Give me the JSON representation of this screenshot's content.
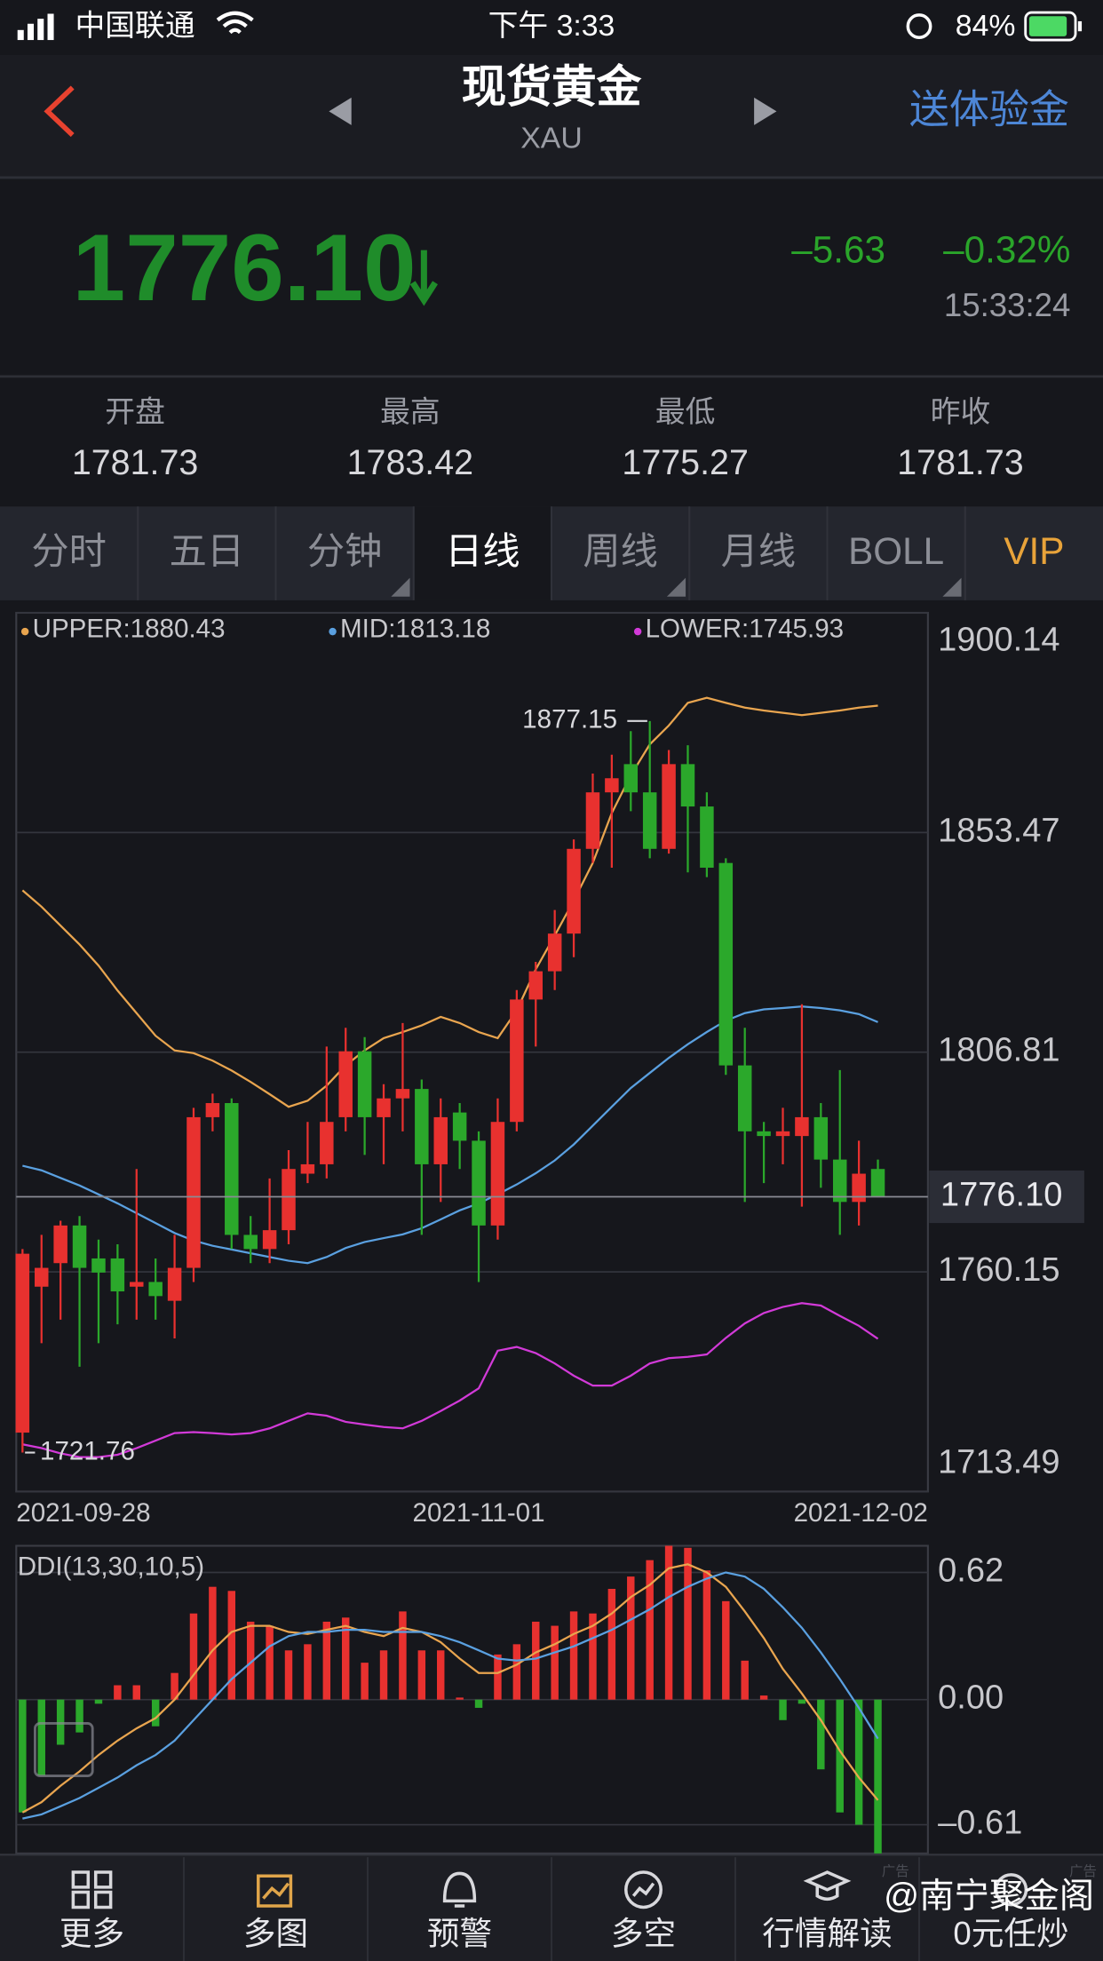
{
  "status_bar": {
    "carrier": "中国联通",
    "time": "下午 3:33",
    "battery": "84%"
  },
  "header": {
    "title": "现货黄金",
    "subtitle": "XAU",
    "action": "送体验金"
  },
  "quote": {
    "price": "1776.10",
    "change": "–5.63",
    "change_pct": "–0.32%",
    "time": "15:33:24"
  },
  "stats": [
    {
      "label": "开盘",
      "value": "1781.73"
    },
    {
      "label": "最高",
      "value": "1783.42"
    },
    {
      "label": "最低",
      "value": "1775.27"
    },
    {
      "label": "昨收",
      "value": "1781.73"
    }
  ],
  "tabs": [
    "分时",
    "五日",
    "分钟",
    "日线",
    "周线",
    "月线",
    "BOLL",
    "VIP"
  ],
  "chart_data": [
    {
      "type": "candlestick",
      "legend_texts": [
        "UPPER:1880.43",
        "MID:1813.18",
        "LOWER:1745.93"
      ],
      "categories": [
        "2021-09-28",
        null,
        null,
        null,
        null,
        null,
        null,
        null,
        null,
        null,
        null,
        null,
        null,
        null,
        null,
        null,
        null,
        null,
        null,
        null,
        null,
        null,
        null,
        null,
        "2021-11-01",
        null,
        null,
        null,
        null,
        null,
        null,
        null,
        null,
        null,
        null,
        null,
        null,
        null,
        null,
        null,
        null,
        null,
        null,
        null,
        null,
        "2021-12-02"
      ],
      "open": [
        1726,
        1757,
        1762,
        1770,
        1763,
        1763,
        1757,
        1758,
        1754,
        1761,
        1793,
        1796,
        1768,
        1765,
        1769,
        1781,
        1783,
        1793,
        1807,
        1793,
        1797,
        1799,
        1783,
        1794,
        1788,
        1770,
        1792,
        1818,
        1824,
        1832,
        1850,
        1862,
        1868,
        1862,
        1850,
        1868,
        1859,
        1847,
        1804,
        1790,
        1789,
        1789,
        1793,
        1784,
        1775,
        1782
      ],
      "high": [
        1765,
        1768,
        1771,
        1772,
        1767,
        1766,
        1782,
        1763,
        1768,
        1795,
        1798,
        1797,
        1772,
        1780,
        1786,
        1792,
        1808,
        1812,
        1810,
        1800,
        1813,
        1801,
        1797,
        1796,
        1790,
        1797,
        1820,
        1826,
        1837,
        1852,
        1866,
        1870,
        1875,
        1877.15,
        1871,
        1872,
        1862,
        1848,
        1812,
        1792,
        1795,
        1817,
        1796,
        1803,
        1788,
        1784
      ],
      "low": [
        1721.76,
        1745,
        1750,
        1740,
        1745,
        1749,
        1750,
        1750,
        1746,
        1758,
        1790,
        1765,
        1762,
        1762,
        1766,
        1779,
        1780,
        1790,
        1785,
        1783,
        1790,
        1768,
        1775,
        1782,
        1758,
        1767,
        1790,
        1808,
        1820,
        1827,
        1847,
        1846,
        1858,
        1848,
        1849,
        1845,
        1844,
        1802,
        1775,
        1779,
        1783,
        1774,
        1778,
        1768,
        1770,
        1776
      ],
      "close": [
        1764,
        1761,
        1770,
        1761,
        1760,
        1756,
        1758,
        1755,
        1761,
        1793,
        1796,
        1768,
        1765,
        1769,
        1782,
        1783,
        1792,
        1807,
        1793,
        1797,
        1799,
        1783,
        1793,
        1788,
        1770,
        1792,
        1818,
        1824,
        1832,
        1850,
        1862,
        1865,
        1862,
        1850,
        1868,
        1859,
        1846,
        1804,
        1790,
        1789,
        1790,
        1793,
        1784,
        1775,
        1781,
        1776.1
      ],
      "up_color": "#e8312f",
      "down_color": "#2ba82b",
      "series": [
        {
          "name": "UPPER",
          "color": "#e9a54f",
          "values": [
            1841.2,
            1837.7,
            1833.7,
            1829.7,
            1825.2,
            1819.9,
            1815.1,
            1810.3,
            1807.2,
            1806.6,
            1805.0,
            1802.9,
            1800.5,
            1797.9,
            1795.2,
            1796.5,
            1799.7,
            1804.0,
            1807.2,
            1809.8,
            1811.1,
            1812.5,
            1814.3,
            1813.0,
            1811.1,
            1809.8,
            1815.7,
            1824.4,
            1831.6,
            1839.0,
            1847.0,
            1857.6,
            1865.6,
            1872.2,
            1876.2,
            1881.0,
            1882.1,
            1881.0,
            1880.0,
            1879.4,
            1878.9,
            1878.4,
            1878.9,
            1879.4,
            1880.0,
            1880.43
          ]
        },
        {
          "name": "MID",
          "color": "#5aa0e0",
          "values": [
            1782.7,
            1781.7,
            1780.1,
            1778.5,
            1776.6,
            1774.7,
            1772.6,
            1770.5,
            1768.4,
            1766.8,
            1765.7,
            1764.9,
            1764.1,
            1763.3,
            1762.5,
            1762.0,
            1763.3,
            1765.2,
            1766.5,
            1767.3,
            1768.1,
            1769.4,
            1771.3,
            1773.2,
            1774.7,
            1776.6,
            1778.7,
            1781.1,
            1783.8,
            1787.2,
            1791.2,
            1795.2,
            1799.2,
            1802.4,
            1805.6,
            1808.5,
            1811.1,
            1813.5,
            1815.1,
            1815.9,
            1816.2,
            1816.5,
            1816.2,
            1815.7,
            1814.9,
            1813.18
          ]
        },
        {
          "name": "LOWER",
          "color": "#d23ad8",
          "values": [
            1723.5,
            1722.7,
            1721.6,
            1720.8,
            1720.8,
            1721.3,
            1722.7,
            1724.3,
            1725.9,
            1726.1,
            1725.9,
            1725.6,
            1725.9,
            1726.9,
            1728.5,
            1730.1,
            1729.6,
            1728.3,
            1727.7,
            1727.2,
            1726.9,
            1728.5,
            1730.6,
            1732.8,
            1735.4,
            1743.4,
            1744.2,
            1742.9,
            1740.7,
            1738.1,
            1736.0,
            1736.0,
            1738.1,
            1740.7,
            1741.8,
            1742.1,
            1742.6,
            1746.1,
            1749.2,
            1751.4,
            1752.7,
            1753.5,
            1753.0,
            1750.8,
            1748.7,
            1745.93
          ]
        }
      ],
      "price_line": {
        "value": 1776.1,
        "label": "1776.10"
      },
      "ylim": [
        1713.49,
        1900.14
      ],
      "yticks": [
        1900.14,
        1853.47,
        1806.81,
        1760.15,
        1713.49
      ],
      "grid": true
    },
    {
      "type": "bar",
      "title": "DDI(13,30,10,5)",
      "values": [
        -0.55,
        -0.37,
        -0.22,
        -0.16,
        -0.02,
        0.07,
        0.07,
        -0.13,
        0.13,
        0.42,
        0.55,
        0.53,
        0.38,
        0.36,
        0.24,
        0.27,
        0.38,
        0.4,
        0.18,
        0.24,
        0.43,
        0.24,
        0.24,
        0.01,
        -0.04,
        0.22,
        0.27,
        0.38,
        0.36,
        0.43,
        0.42,
        0.54,
        0.6,
        0.68,
        0.75,
        0.74,
        0.63,
        0.48,
        0.19,
        0.02,
        -0.1,
        -0.02,
        -0.34,
        -0.55,
        -0.61,
        -0.75
      ],
      "up_color": "#e8312f",
      "down_color": "#2ba82b",
      "series": [
        {
          "color": "#e9a54f",
          "values": [
            -0.55,
            -0.5,
            -0.42,
            -0.35,
            -0.27,
            -0.2,
            -0.14,
            -0.09,
            0.0,
            0.12,
            0.24,
            0.33,
            0.36,
            0.36,
            0.33,
            0.32,
            0.34,
            0.36,
            0.33,
            0.31,
            0.35,
            0.33,
            0.28,
            0.2,
            0.13,
            0.13,
            0.17,
            0.23,
            0.27,
            0.32,
            0.36,
            0.42,
            0.5,
            0.56,
            0.64,
            0.66,
            0.62,
            0.55,
            0.43,
            0.3,
            0.15,
            0.03,
            -0.1,
            -0.25,
            -0.38,
            -0.49
          ]
        },
        {
          "color": "#5aa0e0",
          "values": [
            -0.58,
            -0.56,
            -0.52,
            -0.48,
            -0.43,
            -0.38,
            -0.32,
            -0.27,
            -0.2,
            -0.1,
            0.0,
            0.1,
            0.18,
            0.26,
            0.31,
            0.33,
            0.33,
            0.34,
            0.34,
            0.33,
            0.33,
            0.33,
            0.31,
            0.28,
            0.24,
            0.2,
            0.19,
            0.2,
            0.23,
            0.26,
            0.3,
            0.34,
            0.39,
            0.44,
            0.5,
            0.55,
            0.59,
            0.62,
            0.6,
            0.54,
            0.45,
            0.35,
            0.23,
            0.1,
            -0.04,
            -0.19
          ]
        }
      ],
      "ylim": [
        -0.75,
        0.75
      ],
      "yticks": [
        0.62,
        {
          "value": 0,
          "label": "0.00"
        },
        {
          "value": -0.61,
          "label": "–0.61"
        }
      ]
    }
  ],
  "toolbar": [
    "更多",
    "多图",
    "预警",
    "多空",
    "行情解读",
    "0元任炒"
  ],
  "ad_tags": [
    "广告",
    "广告"
  ],
  "watermark": "@南宁聚金阁"
}
